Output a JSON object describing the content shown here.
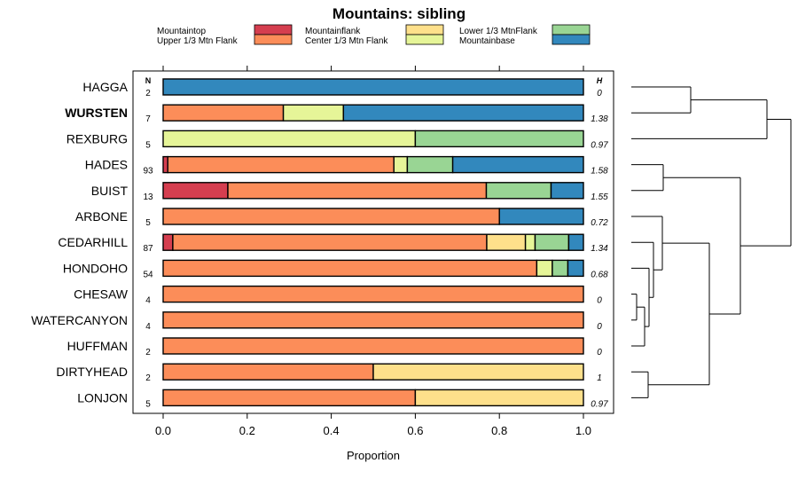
{
  "chart_data": {
    "type": "stacked-bar",
    "title": "Mountains: sibling",
    "xlabel": "Proportion",
    "xlim": [
      0,
      1
    ],
    "x_ticks": [
      "0.0",
      "0.2",
      "0.4",
      "0.6",
      "0.8",
      "1.0"
    ],
    "n_header": "N",
    "h_header": "H",
    "categories_legend": [
      {
        "name": "Mountaintop",
        "color": "#d53e4f"
      },
      {
        "name": "Upper 1/3 Mtn Flank",
        "color": "#fc8d59"
      },
      {
        "name": "Mountainflank",
        "color": "#fee08b"
      },
      {
        "name": "Center 1/3 Mtn Flank",
        "color": "#e6f598"
      },
      {
        "name": "Lower 1/3 MtnFlank",
        "color": "#99d594"
      },
      {
        "name": "Mountainbase",
        "color": "#3288bd"
      }
    ],
    "rows": [
      {
        "label": "HAGGA",
        "bold": false,
        "n": "2",
        "h": "0",
        "values": [
          0,
          0,
          0,
          0,
          0,
          1
        ]
      },
      {
        "label": "WURSTEN",
        "bold": true,
        "n": "7",
        "h": "1.38",
        "values": [
          0,
          0.286,
          0,
          0.143,
          0,
          0.571
        ]
      },
      {
        "label": "REXBURG",
        "bold": false,
        "n": "5",
        "h": "0.97",
        "values": [
          0,
          0,
          0,
          0.6,
          0.4,
          0
        ]
      },
      {
        "label": "HADES",
        "bold": false,
        "n": "93",
        "h": "1.58",
        "values": [
          0.011,
          0.538,
          0,
          0.032,
          0.108,
          0.311
        ]
      },
      {
        "label": "BUIST",
        "bold": false,
        "n": "13",
        "h": "1.55",
        "values": [
          0.154,
          0.615,
          0,
          0,
          0.154,
          0.077
        ]
      },
      {
        "label": "ARBONE",
        "bold": false,
        "n": "5",
        "h": "0.72",
        "values": [
          0,
          0.8,
          0,
          0,
          0,
          0.2
        ]
      },
      {
        "label": "CEDARHILL",
        "bold": false,
        "n": "87",
        "h": "1.34",
        "values": [
          0.023,
          0.747,
          0.092,
          0.023,
          0.08,
          0.035
        ]
      },
      {
        "label": "HONDOHO",
        "bold": false,
        "n": "54",
        "h": "0.68",
        "values": [
          0,
          0.889,
          0,
          0.037,
          0.037,
          0.037
        ]
      },
      {
        "label": "CHESAW",
        "bold": false,
        "n": "4",
        "h": "0",
        "values": [
          0,
          1,
          0,
          0,
          0,
          0
        ]
      },
      {
        "label": "WATERCANYON",
        "bold": false,
        "n": "4",
        "h": "0",
        "values": [
          0,
          1,
          0,
          0,
          0,
          0
        ]
      },
      {
        "label": "HUFFMAN",
        "bold": false,
        "n": "2",
        "h": "0",
        "values": [
          0,
          1,
          0,
          0,
          0,
          0
        ]
      },
      {
        "label": "DIRTYHEAD",
        "bold": false,
        "n": "2",
        "h": "1",
        "values": [
          0,
          0.5,
          0.5,
          0,
          0,
          0
        ]
      },
      {
        "label": "LONJON",
        "bold": false,
        "n": "5",
        "h": "0.97",
        "values": [
          0,
          0.6,
          0.4,
          0,
          0,
          0
        ]
      }
    ]
  }
}
